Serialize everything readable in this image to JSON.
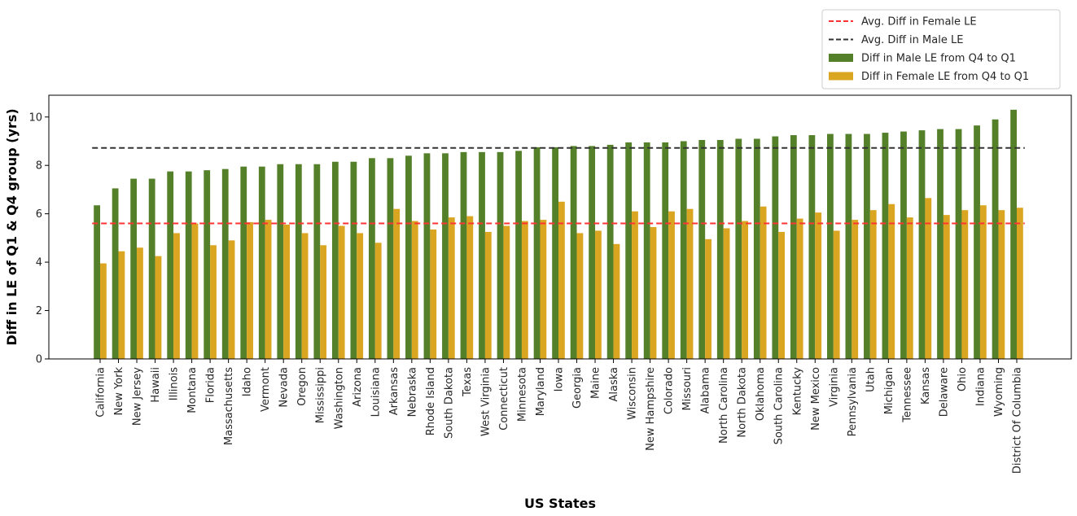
{
  "chart_data": {
    "type": "bar",
    "title": "",
    "xlabel": "US States",
    "ylabel": "Diff in LE of Q1 & Q4 group (yrs)",
    "ylim": [
      0,
      10.9
    ],
    "yticks": [
      0,
      2,
      4,
      6,
      8,
      10
    ],
    "grid": false,
    "legend_position": "top-right (outside above plot)",
    "categories": [
      "California",
      "New York",
      "New Jersey",
      "Hawaii",
      "Illinois",
      "Montana",
      "Florida",
      "Massachusetts",
      "Idaho",
      "Vermont",
      "Nevada",
      "Oregon",
      "Mississippi",
      "Washington",
      "Arizona",
      "Louisiana",
      "Arkansas",
      "Nebraska",
      "Rhode Island",
      "South Dakota",
      "Texas",
      "West Virginia",
      "Connecticut",
      "Minnesota",
      "Maryland",
      "Iowa",
      "Georgia",
      "Maine",
      "Alaska",
      "Wisconsin",
      "New Hampshire",
      "Colorado",
      "Missouri",
      "Alabama",
      "North Carolina",
      "North Dakota",
      "Oklahoma",
      "South Carolina",
      "Kentucky",
      "New Mexico",
      "Virginia",
      "Pennsylvania",
      "Utah",
      "Michigan",
      "Tennessee",
      "Kansas",
      "Delaware",
      "Ohio",
      "Indiana",
      "Wyoming",
      "District Of Columbia"
    ],
    "series": [
      {
        "name": "Diff in Male LE from Q4 to Q1",
        "color": "#55802a",
        "values": [
          6.35,
          7.05,
          7.45,
          7.45,
          7.75,
          7.75,
          7.8,
          7.85,
          7.95,
          7.95,
          8.05,
          8.05,
          8.05,
          8.15,
          8.15,
          8.3,
          8.3,
          8.4,
          8.5,
          8.5,
          8.55,
          8.55,
          8.55,
          8.6,
          8.75,
          8.75,
          8.8,
          8.8,
          8.85,
          8.95,
          8.95,
          8.95,
          9.0,
          9.05,
          9.05,
          9.1,
          9.1,
          9.2,
          9.25,
          9.25,
          9.3,
          9.3,
          9.3,
          9.35,
          9.4,
          9.45,
          9.5,
          9.5,
          9.65,
          9.9,
          10.3
        ]
      },
      {
        "name": "Diff in Female LE from Q4 to Q1",
        "color": "#daa520",
        "values": [
          3.95,
          4.45,
          4.6,
          4.25,
          5.2,
          5.6,
          4.7,
          4.9,
          5.65,
          5.75,
          5.55,
          5.2,
          4.7,
          5.5,
          5.2,
          4.8,
          6.2,
          5.7,
          5.35,
          5.85,
          5.9,
          5.25,
          5.5,
          5.7,
          5.75,
          6.5,
          5.2,
          5.3,
          4.75,
          6.1,
          5.45,
          6.1,
          6.2,
          4.95,
          5.4,
          5.7,
          6.3,
          5.25,
          5.8,
          6.05,
          5.3,
          5.75,
          6.15,
          6.4,
          5.85,
          6.65,
          5.95,
          6.15,
          6.35,
          6.15,
          6.25
        ]
      }
    ],
    "reference_lines": [
      {
        "name": "Avg. Diff in Female LE",
        "value": 5.6,
        "color": "#ff3333",
        "style": "dashed"
      },
      {
        "name": "Avg. Diff in Male LE",
        "value": 8.72,
        "color": "#333333",
        "style": "dashed"
      }
    ],
    "legend": [
      "Avg. Diff in Female LE",
      "Avg. Diff in Male LE",
      "Diff in Male LE from Q4 to Q1",
      "Diff in Female LE from Q4 to Q1"
    ]
  }
}
